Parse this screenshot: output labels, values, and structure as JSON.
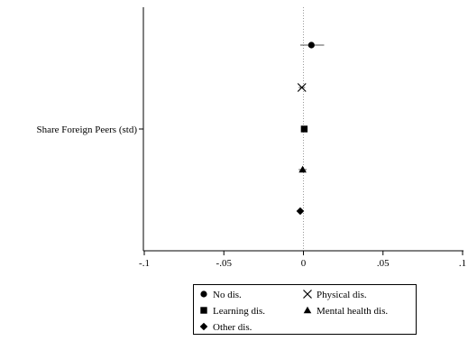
{
  "chart_data": {
    "type": "scatter",
    "title": "",
    "xlabel": "",
    "ylabel": "",
    "xlim": [
      -0.1,
      0.1
    ],
    "xticks": [
      {
        "value": -0.1,
        "label": "-.1"
      },
      {
        "value": -0.05,
        "label": "-.05"
      },
      {
        "value": 0,
        "label": "0"
      },
      {
        "value": 0.05,
        "label": ".05"
      },
      {
        "value": 0.1,
        "label": ".1"
      }
    ],
    "reference_line": 0,
    "categories": [
      "Share Foreign Peers (std)"
    ],
    "series": [
      {
        "name": "No dis.",
        "marker": "circle",
        "estimate": 0.005,
        "ci": [
          -0.002,
          0.013
        ]
      },
      {
        "name": "Physical dis.",
        "marker": "x",
        "estimate": -0.001,
        "ci": [
          -0.003,
          0.001
        ]
      },
      {
        "name": "Learning dis.",
        "marker": "square",
        "estimate": 0.0005,
        "ci": [
          -0.0005,
          0.0015
        ]
      },
      {
        "name": "Mental health dis.",
        "marker": "triangle",
        "estimate": -0.0005,
        "ci": [
          -0.003,
          0.002
        ]
      },
      {
        "name": "Other dis.",
        "marker": "diamond",
        "estimate": -0.002,
        "ci": [
          -0.004,
          0.0
        ]
      }
    ],
    "legend": {
      "placement": "bottom",
      "entries": [
        "No dis.",
        "Physical dis.",
        "Learning dis.",
        "Mental health dis.",
        "Other dis."
      ]
    }
  }
}
